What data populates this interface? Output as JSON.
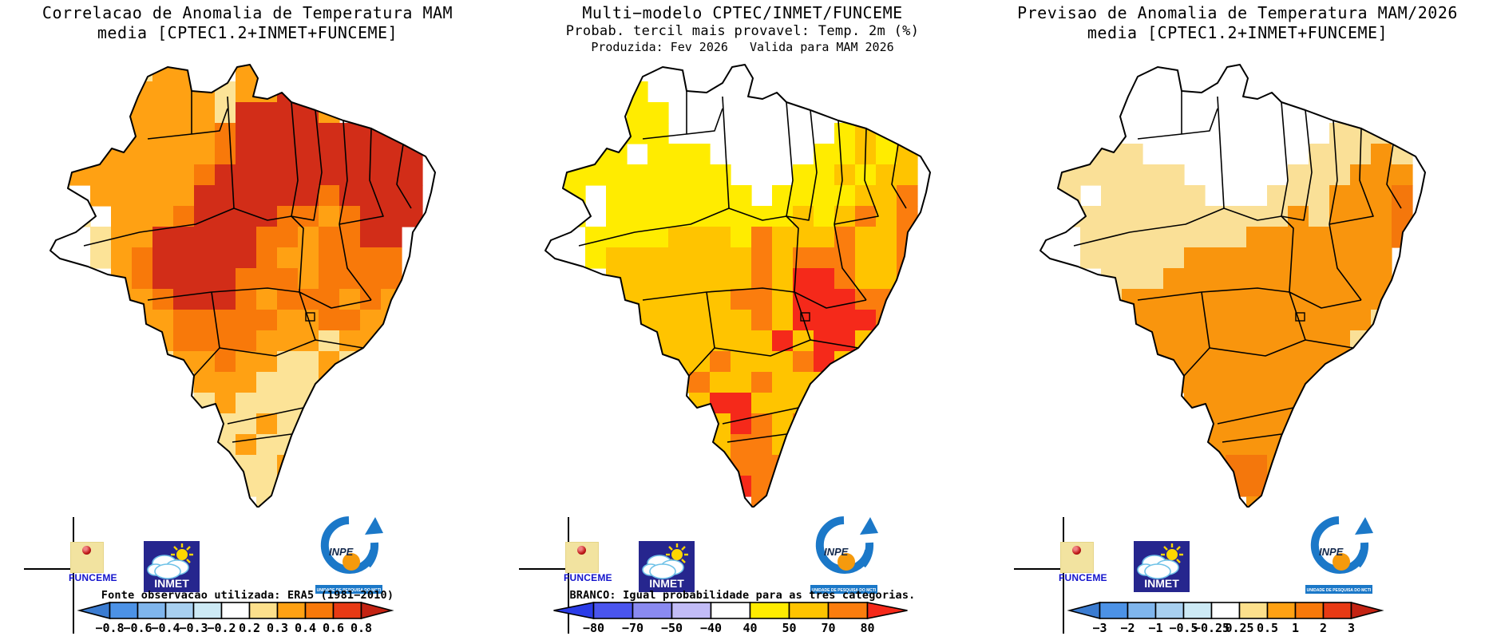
{
  "logos": {
    "funceme": "FUNCEME",
    "inmet": "INMET",
    "inpe": "INPE",
    "inpe_banner": "UNIDADE DE PESQUISA DO MCTI"
  },
  "panels": [
    {
      "title_lines": [
        "Correlacao de Anomalia de Temperatura MAM",
        "media [CPTEC1.2+INMET+FUNCEME]",
        ""
      ],
      "note": "Fonte observacao utilizada: ERA5 (1981−2010)",
      "colorbar": {
        "ticks": [
          "−0.8",
          "−0.6",
          "−0.4",
          "−0.3",
          "−0.2",
          "0.2",
          "0.3",
          "0.4",
          "0.6",
          "0.8"
        ],
        "segment_colors": [
          "#4C92E6",
          "#7FB5EC",
          "#A8D0F0",
          "#CDEAF5",
          "#FFFFFF",
          "#FCE08C",
          "#FFA113",
          "#F8790A",
          "#E83A14"
        ],
        "left_arrow_color": "#3B7CD1",
        "right_arrow_color": "#C42313"
      },
      "map": {
        "palette": {
          "w": "#FFFFFF",
          "y": "#FCE397",
          "o": "#FFA113",
          "d": "#F8790A",
          "R": "#D22D18"
        },
        "grid": [
          "wwwwwyooywoowwwwwwww",
          "wwwwwooooyooRowwwwww",
          "wwoooooooyRRRRowwwww",
          "woooooooodRRRRRRRRww",
          "wwooooooodRRRRRRRRRw",
          "wyoooooodRRRRRRRRRRw",
          "wywoooooRRRRRRdRRRRw",
          "wwywooodRRRRddodRRRw",
          "wwwyooRRRRRddoddRRww",
          "wwwyodRRRRRdooddddww",
          "wwwwodRRRRdddoddddww",
          "wwwwoodRRRdodddodoww",
          "wwwwwoodddddooddooww",
          "wwwwwyoddddoooyooyww",
          "wwwwwwyoodooyyoyyyww",
          "wwwwwwwyoooyyyoyywww",
          "wwwwwwwwyoyyyyyywwww",
          "wwwwwwwwwyyoyyywwwww",
          "wwwwwwwwwyoyyywwwwww",
          "wwwwwwwwwyyyowwwwwww",
          "wwwwwwwwwwyyywwwwwww",
          "wwwwwwwwwwwywwwwwwww"
        ]
      }
    },
    {
      "title_lines": [
        "Multi−modelo CPTEC/INMET/FUNCEME",
        "Probab. tercil mais provavel: Temp. 2m (%)",
        "Produzida: Fev 2026   Valida para MAM 2026"
      ],
      "note": "BRANCO: Igual probabilidade para as tres categorias.",
      "colorbar": {
        "ticks": [
          "−80",
          "−70",
          "−50",
          "−40",
          "40",
          "50",
          "70",
          "80"
        ],
        "segment_colors": [
          "#4A55EE",
          "#8A8AF0",
          "#C2BCF6",
          "#FFFFFF",
          "#FFEC00",
          "#FFC400",
          "#FB7D0E"
        ],
        "left_arrow_color": "#2B3CE8",
        "right_arrow_color": "#F5291A"
      },
      "map": {
        "palette": {
          "w": "#FFFFFF",
          "Y": "#FFEC00",
          "g": "#FFC400",
          "d": "#FB7D0E",
          "r": "#F5291A"
        },
        "grid": [
          "wwwwwwwwwwwwwwwwwwww",
          "wwwwwYwwwwwwwwwwwwww",
          "wwYwwYYwwwwwwwwwwYYw",
          "wwYYYYYwwwwwwwwYgYYw",
          "wYYYYwYYYwwwwwYYgYgw",
          "wYYYYYYYYYwwwYYgYggw",
          "wwYwYYYYYYYwYYYYggdw",
          "wwYwYYYYYYYYYgYgdgdw",
          "wwwYYYYgggYdgggdggdw",
          "wwwYgggggggdgdddggdw",
          "wwwwgggggggdgrrdggdw",
          "wwwwggggggddgrrrdddw",
          "wwwwwggggggdgrrrrdgw",
          "wwwwwgggggggrgrrggww",
          "wwwwwwgggdgggdrggggw",
          "wwwwwwwgdggdggggggww",
          "wwwwwwwwgrrgggdggwww",
          "wwwwwwwwwgrdgdgwwwww",
          "wwwwwwwwwgddggwwwwww",
          "wwwwwwwwwgdddgwwwwww",
          "wwwwwwwwwwrddwwwwwww",
          "wwwwwwwwwwwdwwwwwwww"
        ]
      }
    },
    {
      "title_lines": [
        "Previsao de Anomalia de Temperatura MAM/2026",
        "media [CPTEC1.2+INMET+FUNCEME]",
        ""
      ],
      "note": "",
      "colorbar": {
        "ticks": [
          "−3",
          "−2",
          "−1",
          "−0.5",
          "−0.25",
          "0.25",
          "0.5",
          "1",
          "2",
          "3"
        ],
        "segment_colors": [
          "#4C92E6",
          "#7FB5EC",
          "#A8D0F0",
          "#CDEAF5",
          "#FFFFFF",
          "#FCE08C",
          "#FFA113",
          "#F8790A",
          "#E83A14"
        ],
        "left_arrow_color": "#3B7CD1",
        "right_arrow_color": "#C42313"
      },
      "map": {
        "palette": {
          "w": "#FFFFFF",
          "y": "#FAE097",
          "o": "#F9950D",
          "d": "#F4770C"
        },
        "grid": [
          "wwwwwwwwwwwwwwwwwwww",
          "wwwwwwwwwwwwwwwwwwww",
          "wwwywwwwwwwwwwwwyyww",
          "wwyyywwwwwwwwwwyyyyw",
          "wyyyyywwwwwwwwyyyoyw",
          "wyyyyyyywwwwwyyyooow",
          "wyywyyyyywwwyyyooodw",
          "wwyyyyyyyyyyyoyooodw",
          "wwwyyyyyyyyooooooodw",
          "wwwyyyyyooooooooooww",
          "wwwwyyyoooooooooooww",
          "wwwwyoooooooooooooww",
          "wwwwwooooooooooooyww",
          "wwwwwwooooooooooyyww",
          "wwwwwwoooooooooooyww",
          "wwwwwwwooooooooowwww",
          "wwwwwwwwoooooooowwww",
          "wwwwwwwwwooooowwwwww",
          "wwwwwwwwwooooowwwwww",
          "wwwwwwwwwoddowwwwwww",
          "wwwwwwwwwwddowwwwwww",
          "wwwwwwwwwwwowwwwwwww"
        ]
      }
    }
  ],
  "chart_data": [
    {
      "type": "choropleth-map",
      "region": "Brazil",
      "title": "Correlacao de Anomalia de Temperatura MAM media [CPTEC1.2+INMET+FUNCEME]",
      "legend_note": "Fonte observacao utilizada: ERA5 (1981−2010)",
      "legend_ticks": [
        -0.8,
        -0.6,
        -0.4,
        -0.3,
        -0.2,
        0.2,
        0.3,
        0.4,
        0.6,
        0.8
      ],
      "summary": "High positive correlation (0.6–0.8, dark red) over northern and northeastern Brazil; 0.4–0.6 orange over Amazonas and central Brazil; 0.2–0.3 pale yellow and near-zero white over the south and southwest."
    },
    {
      "type": "choropleth-map",
      "region": "Brazil",
      "title": "Multi−modelo CPTEC/INMET/FUNCEME — Probab. tercil mais provavel: Temp. 2m (%) — Produzida: Fev 2026, Valida para MAM 2026",
      "legend_note": "BRANCO: Igual probabilidade para as tres categorias.",
      "legend_ticks": [
        -80,
        -70,
        -50,
        -40,
        40,
        50,
        70,
        80
      ],
      "summary": "White (equal probability) over far north; 40–50% yellow across Amazonia; 50–70% gold over central Brazil; 70–80% orange and >80% red patches over Goias/Minas Gerais, Mato Grosso do Sul and coastal Rio Grande do Sul."
    },
    {
      "type": "choropleth-map",
      "region": "Brazil",
      "title": "Previsao de Anomalia de Temperatura MAM/2026 media [CPTEC1.2+INMET+FUNCEME]",
      "legend_ticks": [
        -3,
        -2,
        -1,
        -0.5,
        -0.25,
        0.25,
        0.5,
        1,
        2,
        3
      ],
      "summary": "Forecast anomaly 0.5–1 °C (orange) over most of central, eastern and southern Brazil; 0.25–0.5 °C pale yellow over western Amazonia; near zero (white) over the far north; 1–2 °C deeper orange over Rio Grande do Sul."
    }
  ]
}
